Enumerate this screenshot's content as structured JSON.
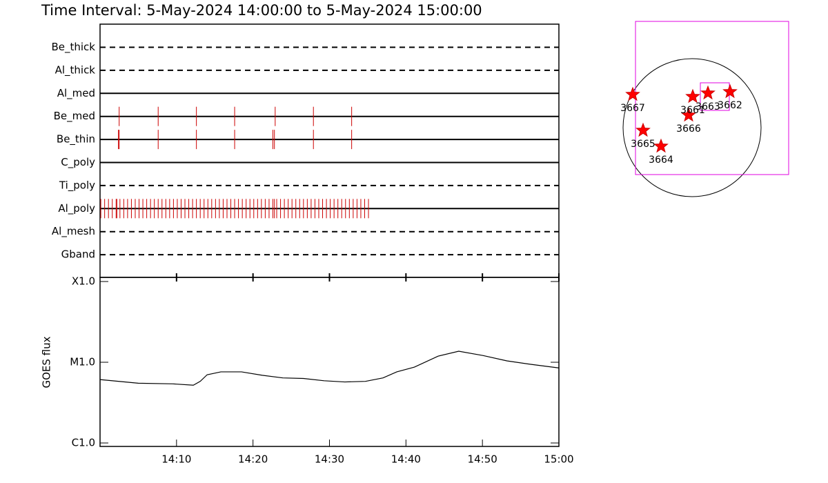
{
  "title": "Time Interval:  5-May-2024 14:00:00 to  5-May-2024 15:00:00",
  "chart_data": [
    {
      "type": "timeline",
      "xlim": [
        0,
        60
      ],
      "color": "#cc0000",
      "series": [
        {
          "name": "Be_thick",
          "style": "dashed",
          "x": []
        },
        {
          "name": "Al_thick",
          "style": "dashed",
          "x": []
        },
        {
          "name": "Al_med",
          "style": "solid",
          "x": []
        },
        {
          "name": "Be_med",
          "style": "solid",
          "x": [
            2.5,
            7.6,
            12.6,
            17.6,
            22.9,
            27.9,
            32.9
          ]
        },
        {
          "name": "Be_thin",
          "style": "solid",
          "x": [
            2.4,
            2.5,
            7.6,
            12.6,
            17.6,
            22.6,
            22.8,
            27.9,
            32.9
          ]
        },
        {
          "name": "C_poly",
          "style": "solid",
          "x": []
        },
        {
          "name": "Ti_poly",
          "style": "dashed",
          "x": []
        },
        {
          "name": "Al_poly",
          "style": "solid",
          "x": [
            0.1,
            0.6,
            1.1,
            1.6,
            2.1,
            2.2,
            2.6,
            3.1,
            3.6,
            4.1,
            4.6,
            5.1,
            5.6,
            6.1,
            6.6,
            7.1,
            7.6,
            8.1,
            8.6,
            9.1,
            9.6,
            10.1,
            10.6,
            11.1,
            11.6,
            12.1,
            12.6,
            13.1,
            13.6,
            14.1,
            14.6,
            15.1,
            15.6,
            16.1,
            16.6,
            17.1,
            17.6,
            18.1,
            18.6,
            19.1,
            19.6,
            20.1,
            20.6,
            21.1,
            21.6,
            22.1,
            22.6,
            22.8,
            23.1,
            23.6,
            24.1,
            24.6,
            25.1,
            25.6,
            26.1,
            26.6,
            27.1,
            27.6,
            28.1,
            28.6,
            29.1,
            29.6,
            30.1,
            30.6,
            31.1,
            31.6,
            32.1,
            32.6,
            33.1,
            33.6,
            34.1,
            34.6,
            35.1
          ]
        },
        {
          "name": "Al_mesh",
          "style": "dashed",
          "x": []
        },
        {
          "name": "Gband",
          "style": "dashed",
          "x": []
        }
      ]
    },
    {
      "type": "line",
      "ylabel": "GOES flux",
      "log_scale": true,
      "color": "#000000",
      "ylim": [
        1e-06,
        0.0001
      ],
      "yticks": [
        {
          "value": 1e-06,
          "label": "C1.0"
        },
        {
          "value": 1e-05,
          "label": "M1.0"
        },
        {
          "value": 0.0001,
          "label": "X1.0"
        }
      ],
      "xlim": [
        0,
        60
      ],
      "xticks": [
        {
          "value": 10,
          "label": "14:10"
        },
        {
          "value": 20,
          "label": "14:20"
        },
        {
          "value": 30,
          "label": "14:30"
        },
        {
          "value": 40,
          "label": "14:40"
        },
        {
          "value": 50,
          "label": "14:50"
        },
        {
          "value": 60,
          "label": "15:00"
        }
      ],
      "x": [
        0,
        5,
        9.5,
        12.2,
        13.1,
        14,
        15.8,
        18.5,
        21.2,
        23.9,
        26.6,
        29.3,
        32,
        34.7,
        37,
        38.8,
        41.1,
        44.2,
        46.9,
        50.1,
        53.2,
        56.4,
        60
      ],
      "values": [
        6.1e-06,
        5.5e-06,
        5.4e-06,
        5.2e-06,
        5.8e-06,
        7e-06,
        7.6e-06,
        7.6e-06,
        6.9e-06,
        6.4e-06,
        6.3e-06,
        5.9e-06,
        5.7e-06,
        5.8e-06,
        6.4e-06,
        7.6e-06,
        8.7e-06,
        1.19e-05,
        1.37e-05,
        1.21e-05,
        1.04e-05,
        9.4e-06,
        8.5e-06
      ]
    }
  ],
  "map": {
    "regions": [
      "3667",
      "3665",
      "3664",
      "3666",
      "3661",
      "3663",
      "3662"
    ]
  }
}
